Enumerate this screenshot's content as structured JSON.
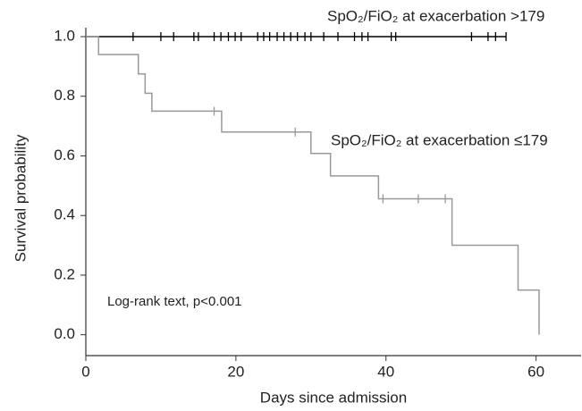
{
  "chart_data": {
    "type": "step",
    "x_label": "Days since admission",
    "y_label": "Survival probability",
    "annotation": "Log-rank text, p<0.001",
    "xlim": [
      0,
      66
    ],
    "xticks": [
      0,
      20,
      40,
      60
    ],
    "ylim": [
      -0.07,
      1.03
    ],
    "yticks": [
      {
        "value": 0,
        "label": "0.0"
      },
      {
        "value": 0.2,
        "label": "0.2"
      },
      {
        "value": 0.4,
        "label": "0.4"
      },
      {
        "value": 0.6,
        "label": "0.6"
      },
      {
        "value": 0.8,
        "label": "0.8"
      },
      {
        "value": 1,
        "label": "1.0"
      }
    ],
    "series": [
      {
        "name": "SpO₂/FiO₂ at exacerbation >179",
        "color": "#000000",
        "x": [
          0,
          56
        ],
        "values": [
          1,
          1
        ],
        "censored": [
          6.3,
          10,
          11.7,
          14.4,
          15,
          17.1,
          18,
          19,
          19.9,
          20.7,
          22.9,
          23.7,
          24.5,
          25.5,
          26.4,
          27.3,
          28.2,
          29.2,
          30,
          31.7,
          33.6,
          35.8,
          36.8,
          37.6,
          40.7,
          41.3,
          51.4,
          53.6,
          54.6,
          56
        ]
      },
      {
        "name": "SpO₂/FiO₂ at exacerbation ≤179",
        "color": "#999999",
        "x": [
          0,
          1.7,
          7,
          7.9,
          8.8,
          18.1,
          30,
          32.6,
          39,
          48.8,
          57.6,
          60.4
        ],
        "values": [
          1,
          0.94,
          0.875,
          0.81,
          0.75,
          0.68,
          0.608,
          0.533,
          0.456,
          0.3,
          0.15,
          0
        ],
        "censored": [
          17.1,
          27.9,
          39.6,
          44.3,
          47.9
        ],
        "censored_values": [
          0.75,
          0.68,
          0.456,
          0.456,
          0.456
        ]
      }
    ]
  }
}
